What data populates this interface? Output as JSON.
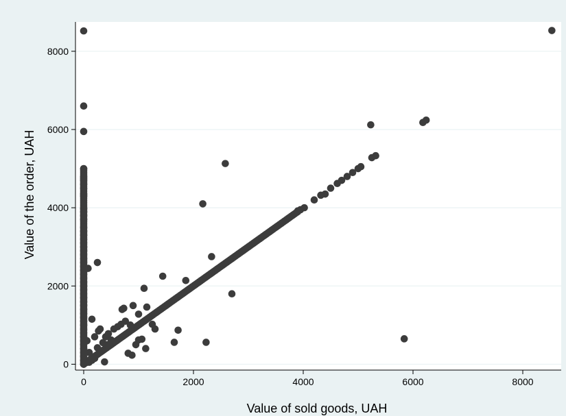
{
  "colors": {
    "outer_background": "#eaf2f3",
    "plot_background": "#ffffff",
    "gridline": "#eaf2f3",
    "marker": "#3c3c3c",
    "axis": "#000000"
  },
  "chart_data": {
    "type": "scatter",
    "title": "",
    "xlabel": "Value of sold goods, UAH",
    "ylabel": "Value of the order, UAH",
    "xlim": [
      -150,
      8700
    ],
    "ylim": [
      -150,
      8750
    ],
    "xticks": [
      0,
      2000,
      4000,
      6000,
      8000
    ],
    "yticks": [
      0,
      2000,
      4000,
      6000,
      8000
    ],
    "xtick_labels": [
      "0",
      "2000",
      "4000",
      "6000",
      "8000"
    ],
    "ytick_labels": [
      "0",
      "2000",
      "4000",
      "6000",
      "8000"
    ],
    "grid": "horizontal",
    "legend": "none",
    "marker": "filled circle",
    "diagonal_band": {
      "from": 0,
      "to": 3900,
      "note": "dense points along y = x"
    },
    "vertical_band_at_zero": {
      "x": 0,
      "y_from": 0,
      "y_to": 5000
    },
    "points": [
      [
        0,
        8520
      ],
      [
        8530,
        8530
      ],
      [
        0,
        6600
      ],
      [
        0,
        5950
      ],
      [
        0,
        5000
      ],
      [
        0,
        4800
      ],
      [
        0,
        4750
      ],
      [
        0,
        4700
      ],
      [
        0,
        4600
      ],
      [
        0,
        4500
      ],
      [
        0,
        4350
      ],
      [
        0,
        4300
      ],
      [
        0,
        3980
      ],
      [
        0,
        3900
      ],
      [
        0,
        3800
      ],
      [
        0,
        3700
      ],
      [
        0,
        3500
      ],
      [
        0,
        3400
      ],
      [
        0,
        3300
      ],
      [
        0,
        3200
      ],
      [
        0,
        3100
      ],
      [
        0,
        3000
      ],
      [
        0,
        2900
      ],
      [
        0,
        2800
      ],
      [
        0,
        2700
      ],
      [
        0,
        2600
      ],
      [
        0,
        2500
      ],
      [
        0,
        2400
      ],
      [
        0,
        2300
      ],
      [
        0,
        2200
      ],
      [
        0,
        2100
      ],
      [
        0,
        2000
      ],
      [
        0,
        1900
      ],
      [
        0,
        1800
      ],
      [
        0,
        1700
      ],
      [
        0,
        1600
      ],
      [
        0,
        1500
      ],
      [
        0,
        1400
      ],
      [
        0,
        1300
      ],
      [
        0,
        1200
      ],
      [
        0,
        1100
      ],
      [
        0,
        1000
      ],
      [
        0,
        900
      ],
      [
        0,
        800
      ],
      [
        0,
        700
      ],
      [
        0,
        600
      ],
      [
        0,
        500
      ],
      [
        0,
        400
      ],
      [
        0,
        300
      ],
      [
        0,
        200
      ],
      [
        0,
        100
      ],
      [
        0,
        0
      ],
      [
        80,
        2450
      ],
      [
        250,
        2600
      ],
      [
        150,
        1150
      ],
      [
        2580,
        5130
      ],
      [
        2170,
        4100
      ],
      [
        5230,
        6120
      ],
      [
        6180,
        6180
      ],
      [
        6240,
        6240
      ],
      [
        5840,
        650
      ],
      [
        2700,
        1800
      ],
      [
        2230,
        560
      ],
      [
        1650,
        560
      ],
      [
        1720,
        870
      ],
      [
        1440,
        2250
      ],
      [
        1860,
        2140
      ],
      [
        2330,
        2750
      ],
      [
        1100,
        1940
      ],
      [
        730,
        1430
      ],
      [
        700,
        1400
      ],
      [
        900,
        1500
      ],
      [
        1000,
        1280
      ],
      [
        1150,
        1460
      ],
      [
        1250,
        1020
      ],
      [
        1300,
        900
      ],
      [
        1000,
        620
      ],
      [
        1060,
        640
      ],
      [
        950,
        500
      ],
      [
        1130,
        400
      ],
      [
        810,
        280
      ],
      [
        880,
        230
      ],
      [
        380,
        60
      ],
      [
        100,
        50
      ],
      [
        200,
        150
      ],
      [
        250,
        420
      ],
      [
        300,
        350
      ],
      [
        350,
        550
      ],
      [
        300,
        900
      ],
      [
        270,
        850
      ],
      [
        400,
        700
      ],
      [
        450,
        780
      ],
      [
        500,
        620
      ],
      [
        550,
        900
      ],
      [
        620,
        960
      ],
      [
        680,
        1020
      ],
      [
        760,
        1100
      ],
      [
        850,
        1000
      ],
      [
        430,
        500
      ],
      [
        60,
        600
      ],
      [
        100,
        300
      ],
      [
        150,
        100
      ],
      [
        200,
        700
      ],
      [
        4020,
        4000
      ],
      [
        4200,
        4200
      ],
      [
        4320,
        4320
      ],
      [
        4400,
        4350
      ],
      [
        4500,
        4500
      ],
      [
        4620,
        4620
      ],
      [
        4700,
        4700
      ],
      [
        4800,
        4800
      ],
      [
        4900,
        4900
      ],
      [
        5000,
        5000
      ],
      [
        5050,
        5050
      ],
      [
        5250,
        5280
      ],
      [
        5320,
        5330
      ],
      [
        3950,
        3950
      ],
      [
        3900,
        3920
      ]
    ]
  }
}
